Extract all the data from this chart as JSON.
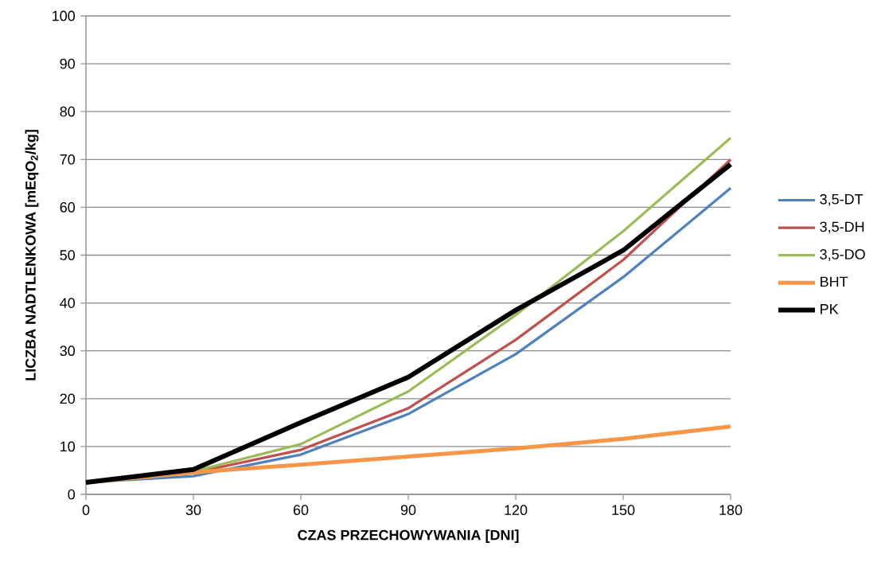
{
  "chart_data": {
    "type": "line",
    "xlabel": "CZAS PRZECHOWYWANIA  [DNI]",
    "ylabel": "LICZBA NADTLENKOWA [mEqO$_{2}$/kg]",
    "x": [
      0,
      30,
      60,
      90,
      120,
      150,
      180
    ],
    "xlim": [
      0,
      180
    ],
    "xticks": [
      0,
      30,
      60,
      90,
      120,
      150,
      180
    ],
    "ylim": [
      0,
      100
    ],
    "yticks": [
      0,
      10,
      20,
      30,
      40,
      50,
      60,
      70,
      80,
      90,
      100
    ],
    "grid": "y",
    "legend": "right",
    "marker": "none",
    "line_style": "solid",
    "series": [
      {
        "name": "3,5-DT",
        "color": "#4f81bd",
        "values": [
          2.5,
          3.8,
          8.3,
          16.8,
          29.3,
          45.4,
          64
        ]
      },
      {
        "name": "3,5-DH",
        "color": "#c0504d",
        "values": [
          2.5,
          4.5,
          9.3,
          18,
          32.3,
          49,
          70
        ]
      },
      {
        "name": "3,5-DO",
        "color": "#9bbb59",
        "values": [
          2.5,
          4.8,
          10.5,
          21.5,
          37.5,
          55,
          74.5
        ]
      },
      {
        "name": "BHT",
        "color": "#f79646",
        "values": [
          2.5,
          4.6,
          6.2,
          7.9,
          9.6,
          11.6,
          14.2
        ]
      },
      {
        "name": "PK",
        "color": "#000000",
        "values": [
          2.5,
          5.2,
          15,
          24.5,
          38.5,
          51,
          69
        ]
      }
    ]
  }
}
